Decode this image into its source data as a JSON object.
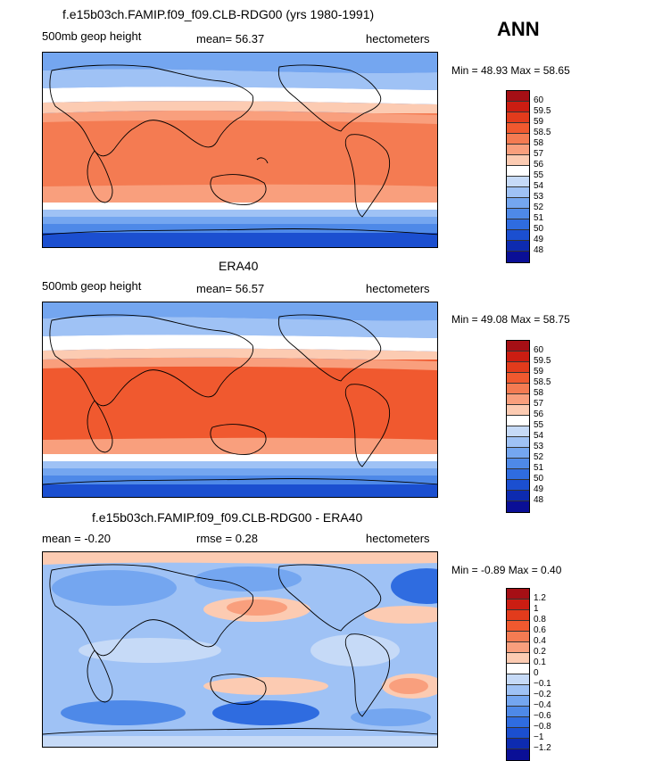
{
  "season": "ANN",
  "panels": [
    {
      "title": "f.e15b03ch.FAMIP.f09_f09.CLB-RDG00 (yrs 1980-1991)",
      "left_label": "500mb geop height",
      "center_label": "mean=   56.37",
      "right_label": "hectometers",
      "min_max": "Min =   48.93  Max =   58.65",
      "levels": [
        "60",
        "59.5",
        "59",
        "58.5",
        "58",
        "57",
        "56",
        "55",
        "54",
        "53",
        "52",
        "51",
        "50",
        "49",
        "48"
      ],
      "colors": [
        "#a50f15",
        "#cb1d12",
        "#e23b1c",
        "#f0592f",
        "#f47b52",
        "#f99f7d",
        "#fccbb2",
        "#ffffff",
        "#c6daf7",
        "#9fc2f5",
        "#74a6f0",
        "#4e89e8",
        "#2f6ce0",
        "#1b4fd0",
        "#0d2bb0",
        "#0a0f96"
      ],
      "colorbar_title": ""
    },
    {
      "title": "ERA40",
      "left_label": "500mb geop height",
      "center_label": "mean=   56.57",
      "right_label": "hectometers",
      "min_max": "Min =   49.08  Max =   58.75",
      "levels": [
        "60",
        "59.5",
        "59",
        "58.5",
        "58",
        "57",
        "56",
        "55",
        "54",
        "53",
        "52",
        "51",
        "50",
        "49",
        "48"
      ],
      "colors": [
        "#a50f15",
        "#cb1d12",
        "#e23b1c",
        "#f0592f",
        "#f47b52",
        "#f99f7d",
        "#fccbb2",
        "#ffffff",
        "#c6daf7",
        "#9fc2f5",
        "#74a6f0",
        "#4e89e8",
        "#2f6ce0",
        "#1b4fd0",
        "#0d2bb0",
        "#0a0f96"
      ]
    },
    {
      "title": "f.e15b03ch.FAMIP.f09_f09.CLB-RDG00 - ERA40",
      "left_label": "mean =   -0.20",
      "center_label": "rmse =     0.28",
      "right_label": "hectometers",
      "min_max": "Min =  -0.89  Max =    0.40",
      "levels": [
        "1.2",
        "1",
        "0.8",
        "0.6",
        "0.4",
        "0.2",
        "0.1",
        "0",
        "−0.1",
        "−0.2",
        "−0.4",
        "−0.6",
        "−0.8",
        "−1",
        "−1.2"
      ],
      "colors": [
        "#a50f15",
        "#cb1d12",
        "#e23b1c",
        "#f0592f",
        "#f47b52",
        "#f99f7d",
        "#fccbb2",
        "#ffffff",
        "#c6daf7",
        "#9fc2f5",
        "#74a6f0",
        "#4e89e8",
        "#2f6ce0",
        "#1b4fd0",
        "#0d2bb0",
        "#0a0f96"
      ]
    }
  ]
}
